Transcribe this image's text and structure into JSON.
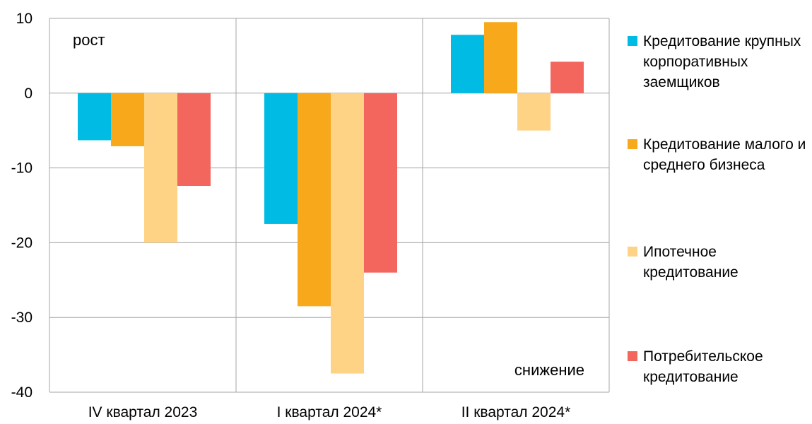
{
  "chart_data": {
    "type": "bar",
    "categories": [
      "IV  квартал 2023",
      "I квартал 2024*",
      "II квартал 2024*"
    ],
    "series": [
      {
        "name": "Кредитование крупных корпоративных заемщиков",
        "color": "#00BCE4",
        "values": [
          -6.3,
          -17.5,
          7.8
        ]
      },
      {
        "name": "Кредитование малого и среднего бизнеса",
        "color": "#F7A81B",
        "values": [
          -7.1,
          -28.5,
          9.5
        ]
      },
      {
        "name": "Ипотечное кредитование",
        "color": "#FFD385",
        "values": [
          -20.0,
          -37.5,
          -5.0
        ]
      },
      {
        "name": "Потребительское кредитование",
        "color": "#F2665E",
        "values": [
          -12.4,
          -24.0,
          4.2
        ]
      }
    ],
    "ylim": [
      -40,
      10
    ],
    "yticks": [
      -40,
      -30,
      -20,
      -10,
      0,
      10
    ],
    "grid": true,
    "legend_position": "right",
    "annotations": {
      "top_left": "рост",
      "bottom_right": "снижение"
    }
  }
}
